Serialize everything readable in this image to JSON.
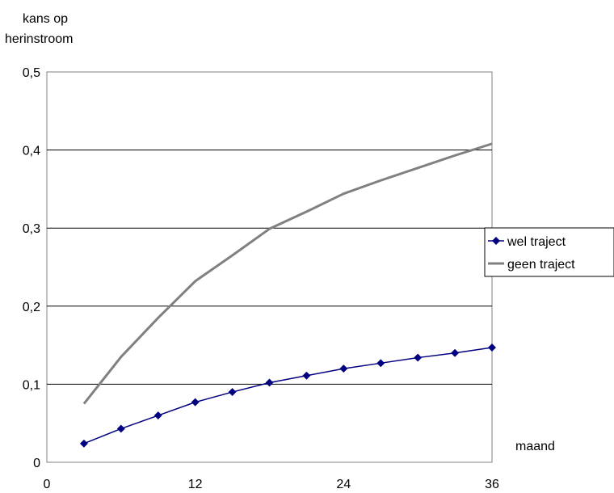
{
  "chart_data": {
    "type": "line",
    "ylabel_lines": [
      "kans op",
      "herinstroom"
    ],
    "xlabel": "maand",
    "xlim": [
      0,
      36
    ],
    "ylim": [
      0,
      0.5
    ],
    "x_ticks": [
      0,
      12,
      24,
      36
    ],
    "x_tick_labels": [
      "0",
      "12",
      "24",
      "36"
    ],
    "y_ticks": [
      0,
      0.1,
      0.2,
      0.3,
      0.4,
      0.5
    ],
    "y_tick_labels": [
      "0",
      "0,1",
      "0,2",
      "0,3",
      "0,4",
      "0,5"
    ],
    "grid": "horizontal",
    "legend_position": "right",
    "series": [
      {
        "name": "wel traject",
        "color": "#000080",
        "marker": "diamond",
        "x": [
          3,
          6,
          9,
          12,
          15,
          18,
          21,
          24,
          27,
          30,
          33,
          36
        ],
        "y": [
          0.024,
          0.043,
          0.06,
          0.077,
          0.09,
          0.102,
          0.111,
          0.12,
          0.127,
          0.134,
          0.14,
          0.147
        ]
      },
      {
        "name": "geen traject",
        "color": "#808080",
        "marker": "none",
        "x": [
          3,
          6,
          9,
          12,
          15,
          18,
          21,
          24,
          27,
          30,
          33,
          36
        ],
        "y": [
          0.075,
          0.135,
          0.185,
          0.232,
          0.265,
          0.299,
          0.321,
          0.344,
          0.361,
          0.377,
          0.393,
          0.408
        ]
      }
    ]
  }
}
